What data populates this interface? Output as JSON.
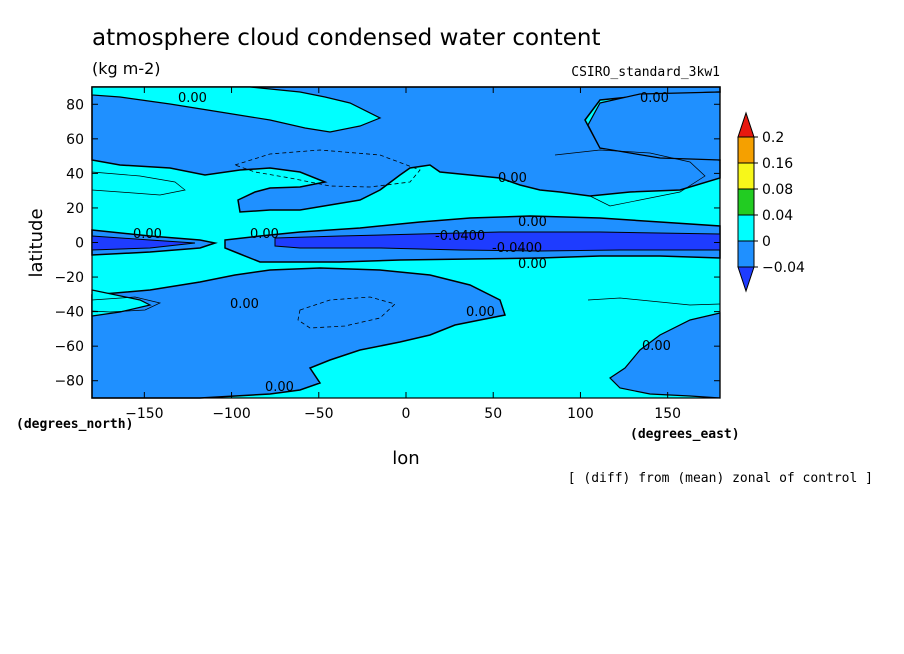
{
  "chart_data": {
    "type": "heatmap",
    "title": "atmosphere cloud condensed water content",
    "units": "(kg m-2)",
    "model": "CSIRO_standard_3kw1",
    "xlabel": "lon",
    "ylabel": "latitude",
    "xunits": "(degrees_east)",
    "yunits": "(degrees_north)",
    "note": "[ (diff) from (mean) zonal of control ]",
    "xlim": [
      -180,
      180
    ],
    "ylim": [
      -90,
      90
    ],
    "xticks": [
      -150,
      -100,
      -50,
      0,
      50,
      100,
      150
    ],
    "yticks": [
      -80,
      -60,
      -40,
      -20,
      0,
      20,
      40,
      60,
      80
    ],
    "colorbar": {
      "levels": [
        "0.2",
        "0.16",
        "0.08",
        "0.04",
        "0",
        "-0.04"
      ],
      "colors": [
        "#e8190f",
        "#f5a000",
        "#f7f71a",
        "#22cc22",
        "#00ffff",
        "#1f90ff",
        "#1e3cff"
      ]
    },
    "contour_labels": [
      "0.00",
      "0.00",
      "0.00",
      "0.00",
      "0.00",
      "0.00",
      "0.00",
      "0.00",
      "0.00",
      "-0.0400",
      "-0.0400",
      "0.00",
      "0.00"
    ]
  }
}
